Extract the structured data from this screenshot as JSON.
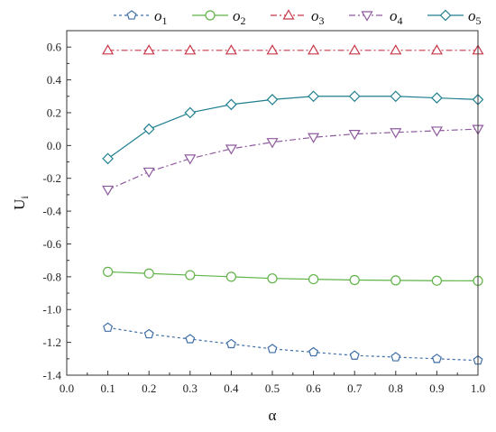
{
  "chart_data": {
    "type": "line",
    "title": "",
    "xlabel": "α",
    "ylabel": {
      "main": "U",
      "sub": "i"
    },
    "xlim": [
      0.0,
      1.0
    ],
    "ylim": [
      -1.4,
      0.7
    ],
    "xticks": [
      "0.0",
      "0.1",
      "0.2",
      "0.3",
      "0.4",
      "0.5",
      "0.6",
      "0.7",
      "0.8",
      "0.9",
      "1.0"
    ],
    "yticks": [
      "0.6",
      "0.4",
      "0.2",
      "0.0",
      "-0.2",
      "-0.4",
      "-0.6",
      "-0.8",
      "-1.0",
      "-1.2",
      "-1.4"
    ],
    "grid": false,
    "legend_position": "top",
    "x": [
      0.1,
      0.2,
      0.3,
      0.4,
      0.5,
      0.6,
      0.7,
      0.8,
      0.9,
      1.0
    ],
    "series": [
      {
        "name": "o",
        "sub": "1",
        "color": "#3f6fa8",
        "marker": "pentagon",
        "dash": "dotted",
        "values": [
          -1.11,
          -1.15,
          -1.18,
          -1.21,
          -1.24,
          -1.26,
          -1.28,
          -1.29,
          -1.3,
          -1.31
        ]
      },
      {
        "name": "o",
        "sub": "2",
        "color": "#5fb347",
        "marker": "circle",
        "dash": "solid",
        "values": [
          -0.77,
          -0.78,
          -0.79,
          -0.8,
          -0.81,
          -0.815,
          -0.82,
          -0.822,
          -0.824,
          -0.825
        ]
      },
      {
        "name": "o",
        "sub": "3",
        "color": "#c8384a",
        "marker": "triangle-up",
        "dash": "dashdot",
        "values": [
          0.58,
          0.58,
          0.58,
          0.58,
          0.58,
          0.58,
          0.58,
          0.58,
          0.58,
          0.58
        ]
      },
      {
        "name": "o",
        "sub": "4",
        "color": "#8e5a9e",
        "marker": "triangle-down",
        "dash": "dashdot",
        "values": [
          -0.27,
          -0.16,
          -0.08,
          -0.02,
          0.02,
          0.05,
          0.07,
          0.08,
          0.09,
          0.1
        ]
      },
      {
        "name": "o",
        "sub": "5",
        "color": "#1f7f8f",
        "marker": "diamond",
        "dash": "solid",
        "values": [
          -0.08,
          0.1,
          0.2,
          0.25,
          0.28,
          0.3,
          0.3,
          0.3,
          0.29,
          0.28
        ]
      }
    ]
  }
}
